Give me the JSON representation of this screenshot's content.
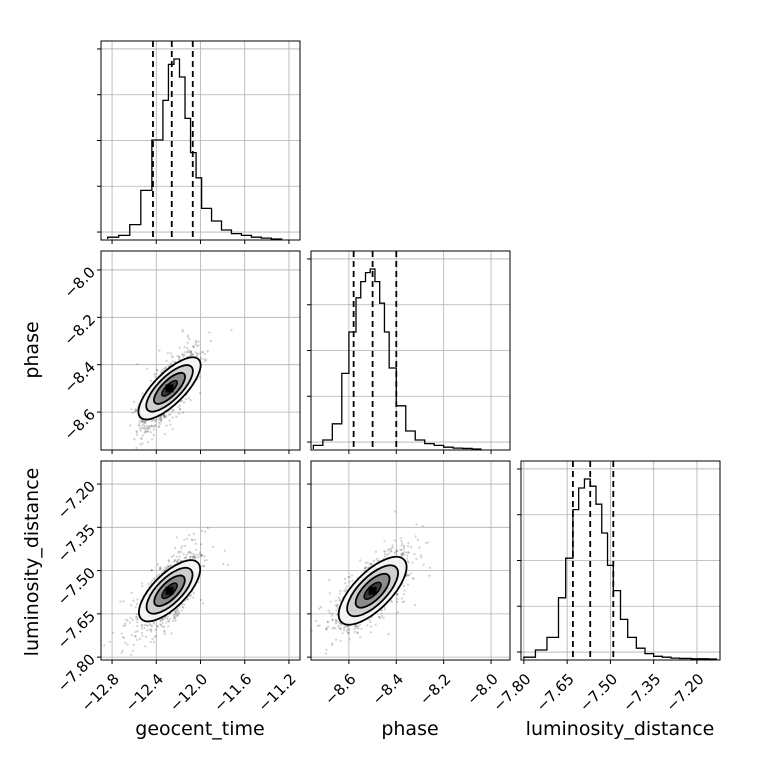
{
  "chart_data": {
    "type": "corner",
    "parameters": [
      "geocent_time",
      "phase",
      "luminosity_distance"
    ],
    "ranges": {
      "geocent_time": [
        -12.9,
        -11.1
      ],
      "phase": [
        -8.76,
        -7.92
      ],
      "luminosity_distance": [
        -7.81,
        -7.12
      ]
    },
    "ticks": {
      "geocent_time": [
        -12.8,
        -12.4,
        -12.0,
        -11.6,
        -11.2
      ],
      "phase": [
        -8.6,
        -8.4,
        -8.2,
        -8.0
      ],
      "luminosity_distance": [
        -7.8,
        -7.65,
        -7.5,
        -7.35,
        -7.2
      ]
    },
    "tick_labels": {
      "geocent_time": [
        "−12.8",
        "−12.4",
        "−12.0",
        "−11.6",
        "−11.2"
      ],
      "phase": [
        "−8.6",
        "−8.4",
        "−8.2",
        "−8.0"
      ],
      "luminosity_distance": [
        "−7.80",
        "−7.65",
        "−7.50",
        "−7.35",
        "−7.20"
      ]
    },
    "quantiles": {
      "geocent_time": [
        -12.43,
        -12.26,
        -12.07
      ],
      "phase": [
        -8.58,
        -8.5,
        -8.4
      ],
      "luminosity_distance": [
        -7.63,
        -7.57,
        -7.49
      ]
    },
    "histograms": {
      "geocent_time": {
        "edges": [
          -12.84,
          -12.74,
          -12.64,
          -12.54,
          -12.44,
          -12.34,
          -12.29,
          -12.24,
          -12.19,
          -12.14,
          -12.09,
          -12.04,
          -11.99,
          -11.9,
          -11.81,
          -11.72,
          -11.63,
          -11.54,
          -11.45,
          -11.36,
          -11.26
        ],
        "counts": [
          0.01,
          0.02,
          0.08,
          0.27,
          0.55,
          0.77,
          0.97,
          1.0,
          0.9,
          0.67,
          0.48,
          0.34,
          0.17,
          0.1,
          0.05,
          0.03,
          0.02,
          0.01,
          0.005,
          0.0
        ]
      },
      "phase": {
        "edges": [
          -8.75,
          -8.71,
          -8.67,
          -8.63,
          -8.6,
          -8.57,
          -8.55,
          -8.53,
          -8.51,
          -8.49,
          -8.47,
          -8.45,
          -8.43,
          -8.4,
          -8.36,
          -8.32,
          -8.28,
          -8.24,
          -8.2,
          -8.16,
          -8.12,
          -8.08,
          -8.04
        ],
        "counts": [
          0.02,
          0.05,
          0.14,
          0.42,
          0.65,
          0.84,
          0.93,
          0.98,
          1.0,
          0.93,
          0.81,
          0.65,
          0.45,
          0.24,
          0.1,
          0.05,
          0.03,
          0.02,
          0.01,
          0.005,
          0.003,
          0.0
        ]
      },
      "luminosity_distance": {
        "edges": [
          -7.8,
          -7.76,
          -7.72,
          -7.68,
          -7.655,
          -7.63,
          -7.61,
          -7.59,
          -7.57,
          -7.55,
          -7.53,
          -7.51,
          -7.49,
          -7.465,
          -7.44,
          -7.41,
          -7.38,
          -7.35,
          -7.32,
          -7.29,
          -7.26,
          -7.22,
          -7.16,
          -7.13
        ],
        "counts": [
          0.01,
          0.05,
          0.12,
          0.34,
          0.56,
          0.83,
          0.95,
          1.0,
          0.96,
          0.86,
          0.7,
          0.52,
          0.38,
          0.22,
          0.12,
          0.06,
          0.03,
          0.015,
          0.01,
          0.005,
          0.003,
          0.001,
          0.0
        ]
      }
    },
    "correlations": {
      "phase|geocent_time": {
        "mean": [
          -12.28,
          -8.5
        ],
        "sd": [
          0.12,
          0.075
        ],
        "rho": 0.75
      },
      "luminosity_distance|geocent_time": {
        "mean": [
          -12.28,
          -7.57
        ],
        "sd": [
          0.12,
          0.06
        ],
        "rho": 0.7
      },
      "luminosity_distance|phase": {
        "mean": [
          -8.5,
          -7.57
        ],
        "sd": [
          0.07,
          0.06
        ],
        "rho": 0.7
      }
    },
    "contour_levels_sigma": [
      0.5,
      1.0,
      1.5,
      2.0
    ]
  }
}
